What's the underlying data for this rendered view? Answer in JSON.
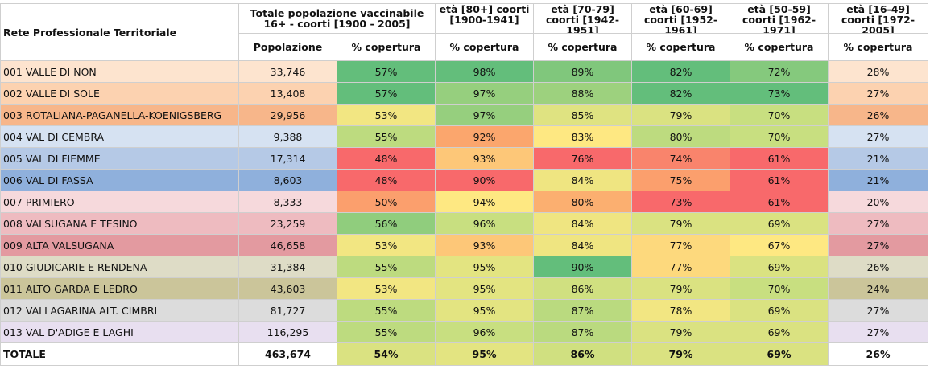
{
  "header": {
    "rete": "Rete Professionale Territoriale",
    "totale_group": "Totale popolazione vaccinabile 16+ - coorti [1900 - 2005]",
    "age_groups": [
      "età [80+] coorti [1900-1941]",
      "età [70-79] coorti [1942-1951]",
      "età [60-69] coorti [1952-1961]",
      "età [50-59] coorti [1962-1971]",
      "età [16-49] coorti [1972-2005]"
    ],
    "popolazione": "Popolazione",
    "copertura": "% copertura"
  },
  "colors": {
    "rows": [
      "#fde4cf",
      "#fcd2b0",
      "#f7b68a",
      "#d6e2f2",
      "#b5c9e6",
      "#8fb0dc",
      "#f6d9dc",
      "#eebbc0",
      "#e39aa0",
      "#dedcc6",
      "#cbc59a",
      "#dcdcdc",
      "#e8dff0"
    ],
    "scale": {
      "45": "#f15b5f",
      "50": "#fb8b6b",
      "52": "#fdbc6b",
      "54": "#fde26f",
      "56": "#c7de7b",
      "57": "#64c67c",
      "88": "#f9706a",
      "90": "#fb8c6b",
      "92": "#fdb26b",
      "93": "#fde66f",
      "95": "#d6e27a",
      "97": "#9ed47e",
      "98": "#5fc37b"
    }
  },
  "rows": [
    {
      "name": "001 VALLE DI NON",
      "pop": "33,746",
      "tot": "57%",
      "c80": "98%",
      "c70": "89%",
      "c60": "82%",
      "c50": "72%",
      "c16": "28%"
    },
    {
      "name": "002 VALLE DI SOLE",
      "pop": "13,408",
      "tot": "57%",
      "c80": "97%",
      "c70": "88%",
      "c60": "82%",
      "c50": "73%",
      "c16": "27%"
    },
    {
      "name": "003 ROTALIANA-PAGANELLA-KOENIGSBERG",
      "pop": "29,956",
      "tot": "53%",
      "c80": "97%",
      "c70": "85%",
      "c60": "79%",
      "c50": "70%",
      "c16": "26%"
    },
    {
      "name": "004 VAL DI CEMBRA",
      "pop": "9,388",
      "tot": "55%",
      "c80": "92%",
      "c70": "83%",
      "c60": "80%",
      "c50": "70%",
      "c16": "27%"
    },
    {
      "name": "005 VAL DI FIEMME",
      "pop": "17,314",
      "tot": "48%",
      "c80": "93%",
      "c70": "76%",
      "c60": "74%",
      "c50": "61%",
      "c16": "21%"
    },
    {
      "name": "006 VAL DI FASSA",
      "pop": "8,603",
      "tot": "48%",
      "c80": "90%",
      "c70": "84%",
      "c60": "75%",
      "c50": "61%",
      "c16": "21%"
    },
    {
      "name": "007 PRIMIERO",
      "pop": "8,333",
      "tot": "50%",
      "c80": "94%",
      "c70": "80%",
      "c60": "73%",
      "c50": "61%",
      "c16": "20%"
    },
    {
      "name": "008 VALSUGANA E TESINO",
      "pop": "23,259",
      "tot": "56%",
      "c80": "96%",
      "c70": "84%",
      "c60": "79%",
      "c50": "69%",
      "c16": "27%"
    },
    {
      "name": "009 ALTA VALSUGANA",
      "pop": "46,658",
      "tot": "53%",
      "c80": "93%",
      "c70": "84%",
      "c60": "77%",
      "c50": "67%",
      "c16": "27%"
    },
    {
      "name": "010 GIUDICARIE E RENDENA",
      "pop": "31,384",
      "tot": "55%",
      "c80": "95%",
      "c70": "90%",
      "c60": "77%",
      "c50": "69%",
      "c16": "26%"
    },
    {
      "name": "011 ALTO GARDA E LEDRO",
      "pop": "43,603",
      "tot": "53%",
      "c80": "95%",
      "c70": "86%",
      "c60": "79%",
      "c50": "70%",
      "c16": "24%"
    },
    {
      "name": "012 VALLAGARINA ALT. CIMBRI",
      "pop": "81,727",
      "tot": "55%",
      "c80": "95%",
      "c70": "87%",
      "c60": "78%",
      "c50": "69%",
      "c16": "27%"
    },
    {
      "name": "013 VAL D'ADIGE E LAGHI",
      "pop": "116,295",
      "tot": "55%",
      "c80": "96%",
      "c70": "87%",
      "c60": "79%",
      "c50": "69%",
      "c16": "27%"
    }
  ],
  "total": {
    "name": "TOTALE",
    "pop": "463,674",
    "tot": "54%",
    "c80": "95%",
    "c70": "86%",
    "c60": "79%",
    "c50": "69%",
    "c16": "26%"
  }
}
